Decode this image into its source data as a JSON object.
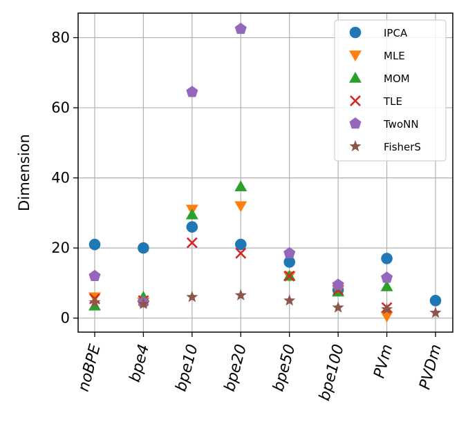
{
  "chart_data": {
    "type": "scatter",
    "title": "",
    "xlabel": "",
    "ylabel": "Dimension",
    "categories": [
      "noBPE",
      "bpe4",
      "bpe10",
      "bpe20",
      "bpe50",
      "bpe100",
      "PVm",
      "PVDm"
    ],
    "ylim": [
      -4,
      87
    ],
    "yticks": [
      0,
      20,
      40,
      60,
      80
    ],
    "grid": true,
    "legend_position": "upper-right",
    "series": [
      {
        "name": "IPCA",
        "marker": "circle",
        "color": "#1f77b4",
        "values": [
          21,
          20,
          26,
          21,
          16,
          8,
          17,
          5
        ]
      },
      {
        "name": "MLE",
        "marker": "triangle-down",
        "color": "#ff7f0e",
        "values": [
          6,
          4.5,
          31,
          32,
          12,
          8,
          0.5,
          null
        ]
      },
      {
        "name": "MOM",
        "marker": "triangle-up",
        "color": "#2ca02c",
        "values": [
          3.5,
          6,
          29.5,
          37.5,
          12,
          7.5,
          9,
          null
        ]
      },
      {
        "name": "TLE",
        "marker": "x",
        "color": "#d62728",
        "values": [
          5.5,
          5,
          21.5,
          18.5,
          12,
          8,
          3,
          null
        ]
      },
      {
        "name": "TwoNN",
        "marker": "pentagon",
        "color": "#9467bd",
        "values": [
          12,
          4.5,
          64.5,
          82.5,
          18.5,
          9.5,
          11.5,
          null
        ]
      },
      {
        "name": "FisherS",
        "marker": "star",
        "color": "#8c564b",
        "values": [
          4.5,
          4,
          6,
          6.5,
          5,
          3,
          2.5,
          1.5
        ]
      }
    ]
  }
}
